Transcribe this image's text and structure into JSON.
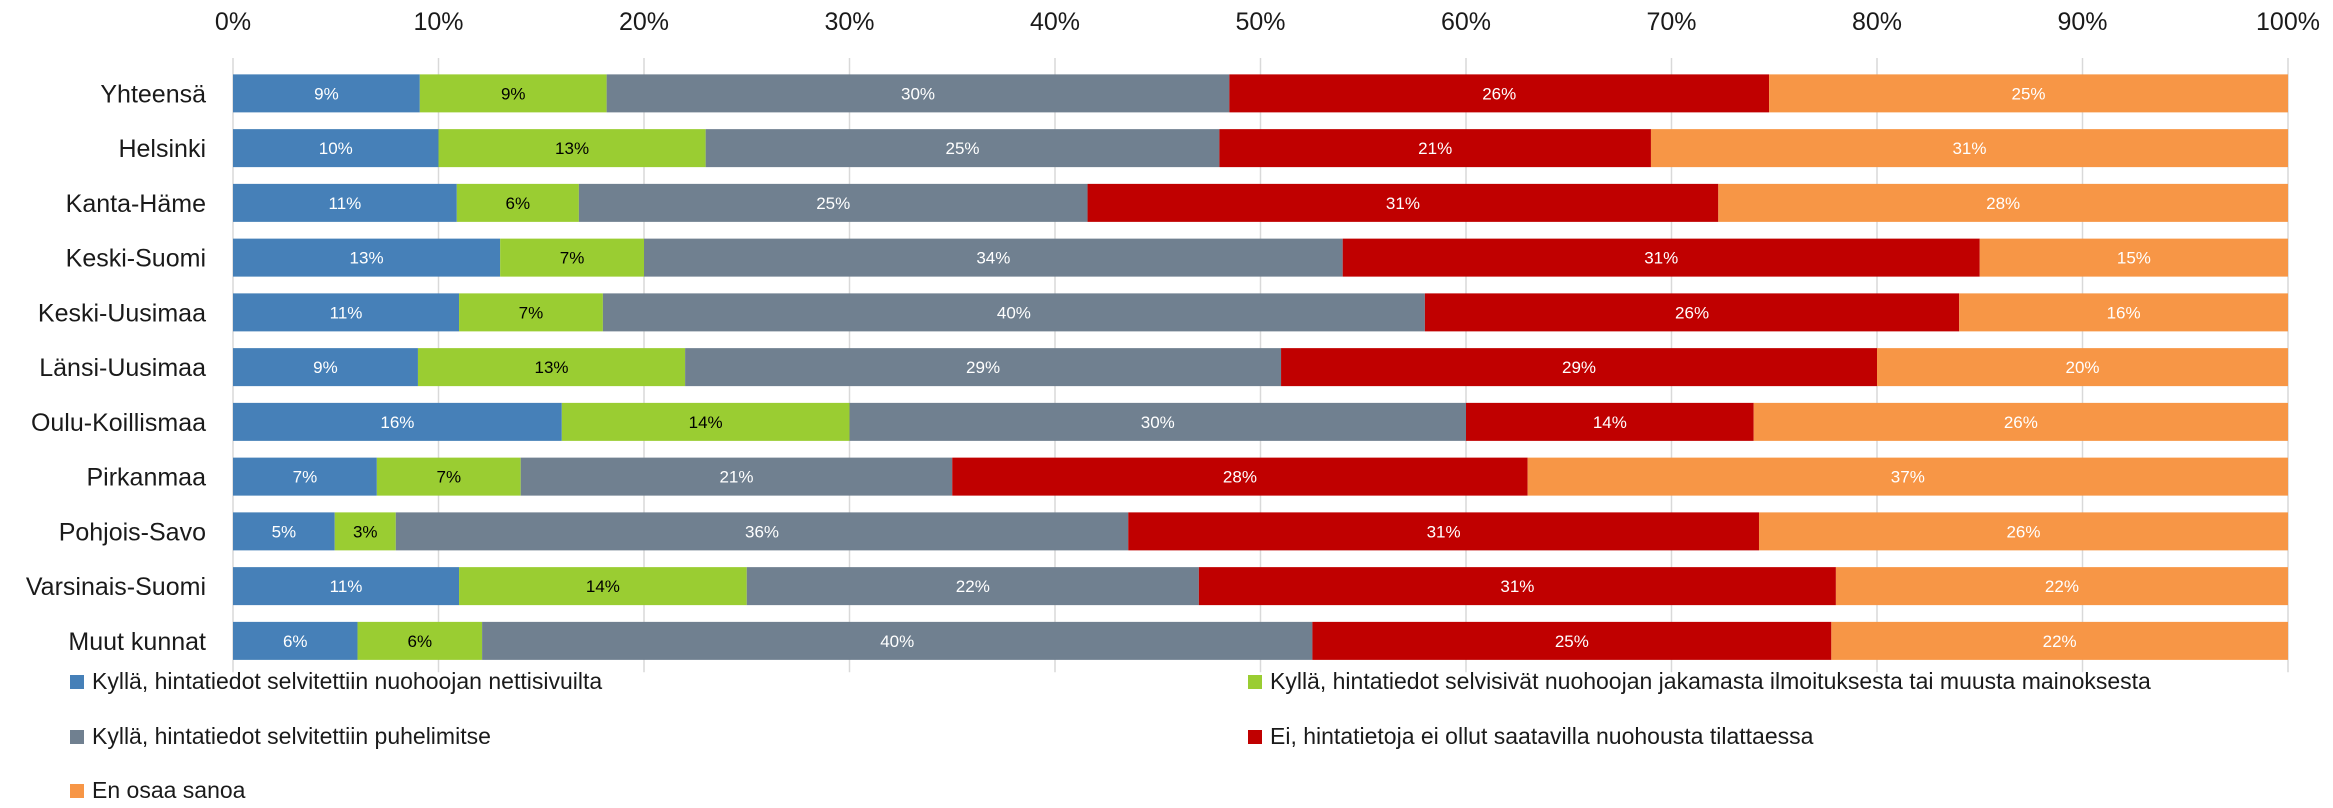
{
  "chart_data": {
    "type": "bar",
    "orientation": "horizontal",
    "stacked": "percent",
    "title": "",
    "xlabel": "",
    "ylabel": "",
    "xlim": [
      0,
      100
    ],
    "x_ticks": [
      "0%",
      "10%",
      "20%",
      "30%",
      "40%",
      "50%",
      "60%",
      "70%",
      "80%",
      "90%",
      "100%"
    ],
    "x_axis_position": "top",
    "grid": "vertical",
    "legend_position": "bottom",
    "categories": [
      "Yhteensä",
      "Helsinki",
      "Kanta-Häme",
      "Keski-Suomi",
      "Keski-Uusimaa",
      "Länsi-Uusimaa",
      "Oulu-Koillismaa",
      "Pirkanmaa",
      "Pohjois-Savo",
      "Varsinais-Suomi",
      "Muut kunnat"
    ],
    "series": [
      {
        "name": "Kyllä, hintatiedot selvitettiin nuohoojan nettisivuilta",
        "color": "#4680B8",
        "label_color": "#ffffff",
        "values": [
          9,
          10,
          11,
          13,
          11,
          9,
          16,
          7,
          5,
          11,
          6
        ]
      },
      {
        "name": "Kyllä, hintatiedot selvisivät nuohoojan jakamasta ilmoituksesta tai muusta mainoksesta",
        "color": "#9ACD32",
        "label_color": "#000000",
        "values": [
          9,
          13,
          6,
          7,
          7,
          13,
          14,
          7,
          3,
          14,
          6
        ]
      },
      {
        "name": "Kyllä, hintatiedot selvitettiin puhelimitse",
        "color": "#708090",
        "label_color": "#ffffff",
        "values": [
          30,
          25,
          25,
          34,
          40,
          29,
          30,
          21,
          36,
          22,
          40
        ]
      },
      {
        "name": "Ei, hintatietoja ei ollut saatavilla nuohousta tilattaessa",
        "color": "#C00000",
        "label_color": "#ffffff",
        "values": [
          26,
          21,
          31,
          31,
          26,
          29,
          14,
          28,
          31,
          31,
          25
        ]
      },
      {
        "name": "En osaa sanoa",
        "color": "#F79646",
        "label_color": "#ffffff",
        "values": [
          25,
          31,
          28,
          15,
          16,
          20,
          26,
          37,
          26,
          22,
          22
        ]
      }
    ]
  }
}
